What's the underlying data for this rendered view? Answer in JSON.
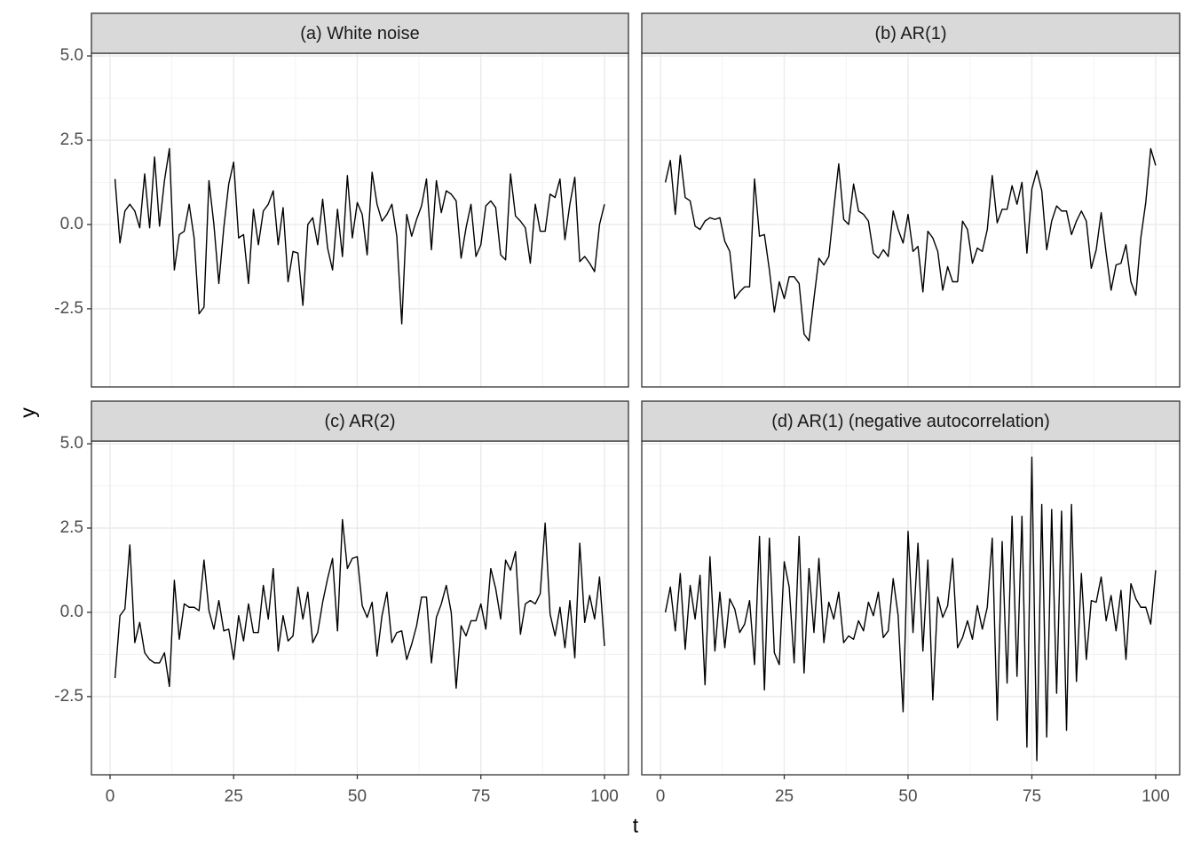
{
  "chart_data": {
    "type": "line",
    "xlabel": "t",
    "ylabel": "y",
    "color": "#000000",
    "grid": true,
    "xlim": [
      -3.77,
      104.85
    ],
    "ylim": [
      -4.82,
      5.08
    ],
    "xticks": [
      0,
      25,
      50,
      75,
      100
    ],
    "yticks": [
      {
        "value": -2.5,
        "label": "-2.5"
      },
      {
        "value": 0,
        "label": "0.0"
      },
      {
        "value": 2.5,
        "label": "2.5"
      },
      {
        "value": 5,
        "label": "5.0"
      }
    ],
    "x": [
      1,
      2,
      3,
      4,
      5,
      6,
      7,
      8,
      9,
      10,
      11,
      12,
      13,
      14,
      15,
      16,
      17,
      18,
      19,
      20,
      21,
      22,
      23,
      24,
      25,
      26,
      27,
      28,
      29,
      30,
      31,
      32,
      33,
      34,
      35,
      36,
      37,
      38,
      39,
      40,
      41,
      42,
      43,
      44,
      45,
      46,
      47,
      48,
      49,
      50,
      51,
      52,
      53,
      54,
      55,
      56,
      57,
      58,
      59,
      60,
      61,
      62,
      63,
      64,
      65,
      66,
      67,
      68,
      69,
      70,
      71,
      72,
      73,
      74,
      75,
      76,
      77,
      78,
      79,
      80,
      81,
      82,
      83,
      84,
      85,
      86,
      87,
      88,
      89,
      90,
      91,
      92,
      93,
      94,
      95,
      96,
      97,
      98,
      99,
      100
    ],
    "panels": [
      {
        "title": "(a) White noise",
        "values": [
          1.35,
          -0.55,
          0.4,
          0.6,
          0.4,
          -0.1,
          1.5,
          -0.1,
          2.0,
          -0.05,
          1.3,
          2.25,
          -1.35,
          -0.3,
          -0.2,
          0.6,
          -0.4,
          -2.65,
          -2.45,
          1.3,
          0.0,
          -1.75,
          -0.1,
          1.2,
          1.85,
          -0.4,
          -0.3,
          -1.75,
          0.45,
          -0.6,
          0.4,
          0.6,
          1.0,
          -0.6,
          0.5,
          -1.7,
          -0.8,
          -0.85,
          -2.4,
          0.0,
          0.2,
          -0.6,
          0.75,
          -0.7,
          -1.35,
          0.45,
          -0.95,
          1.45,
          -0.4,
          0.65,
          0.3,
          -0.9,
          1.55,
          0.6,
          0.1,
          0.3,
          0.6,
          -0.35,
          -2.95,
          0.3,
          -0.35,
          0.15,
          0.55,
          1.35,
          -0.75,
          1.3,
          0.35,
          1.0,
          0.9,
          0.7,
          -1.0,
          -0.1,
          0.6,
          -0.95,
          -0.6,
          0.55,
          0.7,
          0.5,
          -0.9,
          -1.05,
          1.5,
          0.25,
          0.1,
          -0.1,
          -1.15,
          0.6,
          -0.2,
          -0.2,
          0.9,
          0.8,
          1.35,
          -0.45,
          0.6,
          1.4,
          -1.1,
          -0.95,
          -1.15,
          -1.4,
          0.0,
          0.6
        ]
      },
      {
        "title": "(b) AR(1)",
        "values": [
          1.25,
          1.9,
          0.3,
          2.05,
          0.8,
          0.7,
          -0.05,
          -0.15,
          0.1,
          0.2,
          0.15,
          0.2,
          -0.5,
          -0.8,
          -2.2,
          -2.0,
          -1.85,
          -1.85,
          1.35,
          -0.35,
          -0.3,
          -1.35,
          -2.6,
          -1.7,
          -2.2,
          -1.55,
          -1.55,
          -1.75,
          -3.25,
          -3.45,
          -2.2,
          -1.0,
          -1.2,
          -0.95,
          0.45,
          1.8,
          0.15,
          0.0,
          1.2,
          0.4,
          0.3,
          0.1,
          -0.85,
          -1.0,
          -0.75,
          -0.95,
          0.4,
          -0.15,
          -0.55,
          0.3,
          -0.8,
          -0.65,
          -2.0,
          -0.2,
          -0.4,
          -0.8,
          -1.95,
          -1.25,
          -1.7,
          -1.7,
          0.1,
          -0.15,
          -1.15,
          -0.7,
          -0.8,
          -0.15,
          1.45,
          0.05,
          0.45,
          0.45,
          1.15,
          0.6,
          1.25,
          -0.85,
          1.05,
          1.6,
          1.0,
          -0.75,
          0.1,
          0.55,
          0.4,
          0.4,
          -0.3,
          0.1,
          0.4,
          0.1,
          -1.3,
          -0.75,
          0.35,
          -0.85,
          -1.95,
          -1.2,
          -1.15,
          -0.6,
          -1.7,
          -2.1,
          -0.4,
          0.65,
          2.25,
          1.75
        ]
      },
      {
        "title": "(c) AR(2)",
        "values": [
          -1.95,
          -0.1,
          0.1,
          2.0,
          -0.9,
          -0.3,
          -1.2,
          -1.4,
          -1.5,
          -1.5,
          -1.2,
          -2.2,
          0.95,
          -0.8,
          0.25,
          0.15,
          0.15,
          0.05,
          1.55,
          0.05,
          -0.5,
          0.35,
          -0.55,
          -0.5,
          -1.4,
          -0.1,
          -0.85,
          0.25,
          -0.6,
          -0.6,
          0.8,
          -0.2,
          1.3,
          -1.15,
          -0.1,
          -0.85,
          -0.7,
          0.75,
          -0.2,
          0.6,
          -0.9,
          -0.6,
          0.3,
          1.0,
          1.6,
          -0.55,
          2.75,
          1.3,
          1.6,
          1.65,
          0.2,
          -0.15,
          0.3,
          -1.3,
          -0.1,
          0.6,
          -0.9,
          -0.6,
          -0.55,
          -1.4,
          -0.95,
          -0.4,
          0.45,
          0.45,
          -1.5,
          -0.15,
          0.25,
          0.8,
          0.0,
          -2.25,
          -0.4,
          -0.7,
          -0.25,
          -0.25,
          0.25,
          -0.5,
          1.3,
          0.7,
          -0.2,
          1.55,
          1.25,
          1.8,
          -0.65,
          0.25,
          0.35,
          0.25,
          0.55,
          2.65,
          -0.05,
          -0.7,
          0.15,
          -1.05,
          0.35,
          -1.35,
          2.05,
          -0.3,
          0.5,
          -0.2,
          1.05,
          -1.0
        ]
      },
      {
        "title": "(d) AR(1) (negative autocorrelation)",
        "values": [
          0.0,
          0.75,
          -0.55,
          1.15,
          -1.1,
          0.8,
          -0.2,
          1.1,
          -2.15,
          1.65,
          -1.15,
          0.6,
          -1.05,
          0.4,
          0.1,
          -0.6,
          -0.35,
          0.35,
          -1.55,
          2.25,
          -2.3,
          2.2,
          -1.2,
          -1.55,
          1.5,
          0.75,
          -1.5,
          2.25,
          -1.8,
          1.3,
          -0.6,
          1.6,
          -0.9,
          0.3,
          -0.2,
          0.6,
          -0.9,
          -0.7,
          -0.8,
          -0.25,
          -0.55,
          0.3,
          -0.1,
          0.6,
          -0.75,
          -0.55,
          1.0,
          -0.1,
          -2.95,
          2.4,
          -0.6,
          2.05,
          -1.15,
          1.55,
          -2.6,
          0.45,
          -0.15,
          0.2,
          1.6,
          -1.05,
          -0.75,
          -0.25,
          -0.8,
          0.2,
          -0.5,
          0.15,
          2.2,
          -3.2,
          2.1,
          -2.1,
          2.85,
          -1.9,
          2.85,
          -4.0,
          4.6,
          -4.4,
          3.2,
          -3.7,
          3.05,
          -2.4,
          3.0,
          -3.5,
          3.2,
          -2.05,
          1.15,
          -1.4,
          0.35,
          0.3,
          1.05,
          -0.25,
          0.5,
          -0.55,
          0.65,
          -1.4,
          0.85,
          0.4,
          0.15,
          0.15,
          -0.35,
          1.25
        ]
      }
    ]
  }
}
